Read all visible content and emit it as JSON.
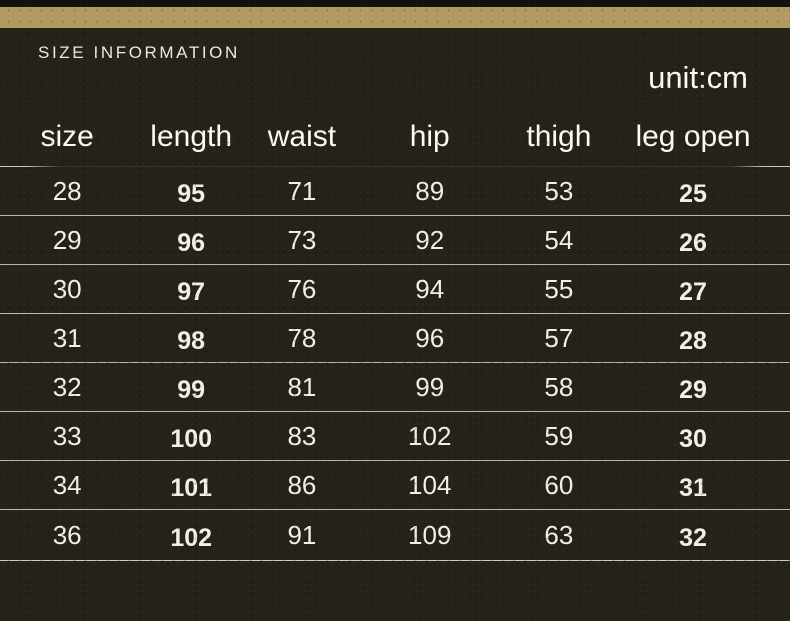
{
  "banner": {
    "title": "SIZE INFORMATION",
    "unit_label": "unit:cm"
  },
  "chart_data": {
    "type": "table",
    "title": "SIZE INFORMATION",
    "unit": "cm",
    "columns": [
      "size",
      "length",
      "waist",
      "hip",
      "thigh",
      "leg open"
    ],
    "rows": [
      [
        28,
        95,
        71,
        89,
        53,
        25
      ],
      [
        29,
        96,
        73,
        92,
        54,
        26
      ],
      [
        30,
        97,
        76,
        94,
        55,
        27
      ],
      [
        31,
        98,
        78,
        96,
        57,
        28
      ],
      [
        32,
        99,
        81,
        99,
        58,
        29
      ],
      [
        33,
        100,
        83,
        102,
        59,
        30
      ],
      [
        34,
        101,
        86,
        104,
        60,
        31
      ],
      [
        36,
        102,
        91,
        109,
        63,
        32
      ]
    ]
  },
  "colors": {
    "accent_gold": "#b19b62",
    "top_strip": "#131110",
    "background": "#272219",
    "text": "#f2f0ea",
    "divider": "#d1cdc5"
  }
}
